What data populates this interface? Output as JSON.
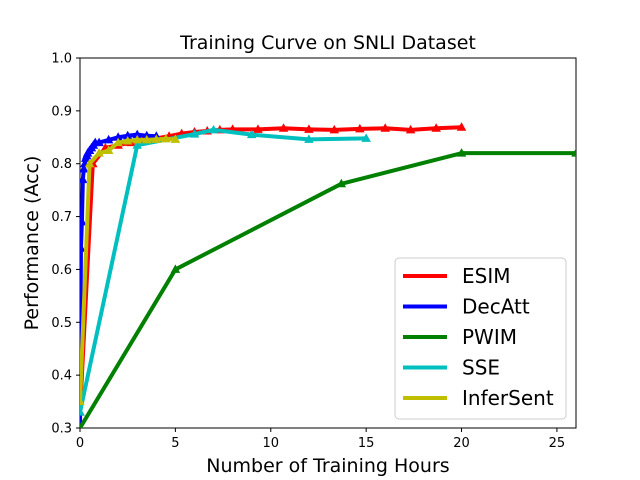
{
  "chart_data": {
    "type": "line",
    "title": "Training Curve on SNLI Dataset",
    "xlabel": "Number of Training Hours",
    "ylabel": "Performance (Acc)",
    "xlim": [
      0,
      26
    ],
    "ylim": [
      0.3,
      1.0
    ],
    "xticks": [
      0,
      5,
      10,
      15,
      20,
      25
    ],
    "xtick_labels": [
      "0",
      "5",
      "10",
      "15",
      "20",
      "25"
    ],
    "yticks": [
      0.3,
      0.4,
      0.5,
      0.6,
      0.7,
      0.8,
      0.9,
      1.0
    ],
    "ytick_labels": [
      "0.3",
      "0.4",
      "0.5",
      "0.6",
      "0.7",
      "0.8",
      "0.9",
      "1.0"
    ],
    "legend_position": "bottom-right",
    "marker": "triangle",
    "series": [
      {
        "name": "ESIM",
        "color": "#ff0000",
        "x": [
          0,
          0.67,
          1.33,
          2.0,
          2.67,
          3.33,
          4.0,
          4.67,
          5.33,
          6.0,
          6.67,
          7.33,
          8.0,
          9.33,
          10.67,
          12.0,
          13.33,
          14.67,
          16.0,
          17.33,
          18.67,
          20.0
        ],
        "y": [
          0.33,
          0.8,
          0.83,
          0.835,
          0.84,
          0.845,
          0.848,
          0.852,
          0.857,
          0.86,
          0.862,
          0.864,
          0.865,
          0.865,
          0.867,
          0.865,
          0.864,
          0.866,
          0.867,
          0.864,
          0.867,
          0.869
        ]
      },
      {
        "name": "DecAtt",
        "color": "#0000ff",
        "x": [
          0,
          0.05,
          0.1,
          0.15,
          0.2,
          0.25,
          0.3,
          0.35,
          0.4,
          0.5,
          0.6,
          0.7,
          0.8,
          1.0,
          1.5,
          2.0,
          2.5,
          3.0,
          3.5,
          4.0
        ],
        "y": [
          0.3,
          0.64,
          0.69,
          0.77,
          0.79,
          0.8,
          0.81,
          0.815,
          0.82,
          0.825,
          0.83,
          0.835,
          0.84,
          0.84,
          0.845,
          0.85,
          0.853,
          0.855,
          0.853,
          0.852
        ]
      },
      {
        "name": "PWIM",
        "color": "#008000",
        "x": [
          0,
          5,
          13.7,
          20,
          26
        ],
        "y": [
          0.3,
          0.6,
          0.762,
          0.82,
          0.82
        ]
      },
      {
        "name": "SSE",
        "color": "#00bfbf",
        "x": [
          0,
          3,
          6,
          7,
          9,
          12,
          15
        ],
        "y": [
          0.33,
          0.835,
          0.856,
          0.864,
          0.855,
          0.846,
          0.848
        ]
      },
      {
        "name": "InferSent",
        "color": "#bfbf00",
        "x": [
          0,
          0.5,
          1.0,
          1.5,
          2.0,
          2.5,
          3.0,
          3.5,
          4.0,
          4.5,
          5.0
        ],
        "y": [
          0.35,
          0.8,
          0.82,
          0.825,
          0.84,
          0.843,
          0.845,
          0.845,
          0.846,
          0.847,
          0.846
        ]
      }
    ]
  }
}
